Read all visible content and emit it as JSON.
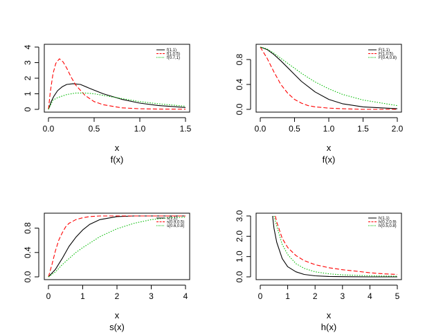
{
  "chart_data": [
    {
      "type": "line",
      "xlabel": "x",
      "caption": "f(x)",
      "xlim": [
        0,
        1.5
      ],
      "ylim": [
        0,
        4
      ],
      "x_ticks": [
        0.0,
        0.5,
        1.0,
        1.5
      ],
      "x_tick_labels": [
        "0.0",
        "0.5",
        "1.0",
        "1.5"
      ],
      "y_ticks": [
        0,
        1,
        2,
        3,
        4
      ],
      "y_tick_labels": [
        "0",
        "1",
        "2",
        "3",
        "4"
      ],
      "legend_position": "top-right",
      "series": [
        {
          "name": "f(1,1)",
          "color": "#000000",
          "dash": "solid",
          "x": [
            0,
            0.03,
            0.06,
            0.1,
            0.15,
            0.2,
            0.27,
            0.35,
            0.45,
            0.6,
            0.8,
            1.0,
            1.2,
            1.5
          ],
          "y": [
            0,
            0.5,
            0.85,
            1.2,
            1.45,
            1.6,
            1.65,
            1.6,
            1.35,
            1.0,
            0.65,
            0.4,
            0.25,
            0.12
          ]
        },
        {
          "name": "f(1,0.5)",
          "color": "#ff0000",
          "dash": "dashed",
          "x": [
            0,
            0.02,
            0.05,
            0.08,
            0.12,
            0.16,
            0.2,
            0.25,
            0.3,
            0.4,
            0.5,
            0.6,
            0.8,
            1.0,
            1.2,
            1.5
          ],
          "y": [
            0,
            1.1,
            2.3,
            2.95,
            3.25,
            3.05,
            2.65,
            2.05,
            1.55,
            0.9,
            0.5,
            0.3,
            0.1,
            0.04,
            0.02,
            0.01
          ]
        },
        {
          "name": "f(0.7,1)",
          "color": "#00bb00",
          "dash": "dotted",
          "x": [
            0,
            0.05,
            0.1,
            0.2,
            0.3,
            0.4,
            0.5,
            0.6,
            0.8,
            1.0,
            1.2,
            1.5
          ],
          "y": [
            0,
            0.6,
            0.75,
            0.95,
            1.05,
            1.05,
            1.0,
            0.9,
            0.7,
            0.5,
            0.36,
            0.2
          ]
        }
      ]
    },
    {
      "type": "line",
      "xlabel": "x",
      "caption": "f(x)",
      "xlim": [
        0,
        2
      ],
      "ylim": [
        0,
        1
      ],
      "x_ticks": [
        0.0,
        0.5,
        1.0,
        1.5,
        2.0
      ],
      "x_tick_labels": [
        "0.0",
        "0.5",
        "1.0",
        "1.5",
        "2.0"
      ],
      "y_ticks": [
        0.0,
        0.4,
        0.8
      ],
      "y_tick_labels": [
        "0.0",
        "0.4",
        "0.8"
      ],
      "legend_position": "top-right",
      "series": [
        {
          "name": "F(1,1)",
          "color": "#000000",
          "dash": "solid",
          "x": [
            0,
            0.1,
            0.2,
            0.3,
            0.4,
            0.5,
            0.6,
            0.8,
            1.0,
            1.2,
            1.5,
            2.0
          ],
          "y": [
            1.0,
            0.96,
            0.88,
            0.78,
            0.67,
            0.56,
            0.45,
            0.28,
            0.16,
            0.09,
            0.04,
            0.01
          ]
        },
        {
          "name": "F(1,0.5)",
          "color": "#ff0000",
          "dash": "dashed",
          "x": [
            0,
            0.1,
            0.2,
            0.3,
            0.4,
            0.5,
            0.6,
            0.7,
            0.8,
            1.0,
            1.2,
            1.5,
            2.0
          ],
          "y": [
            1.0,
            0.82,
            0.6,
            0.4,
            0.26,
            0.16,
            0.1,
            0.06,
            0.04,
            0.02,
            0.01,
            0.0,
            0.0
          ]
        },
        {
          "name": "F(0.4,0.8)",
          "color": "#00bb00",
          "dash": "dotted",
          "x": [
            0,
            0.1,
            0.2,
            0.4,
            0.6,
            0.8,
            1.0,
            1.2,
            1.5,
            2.0
          ],
          "y": [
            1.0,
            0.97,
            0.9,
            0.74,
            0.58,
            0.44,
            0.33,
            0.24,
            0.15,
            0.06
          ]
        }
      ]
    },
    {
      "type": "line",
      "xlabel": "x",
      "caption": "s(x)",
      "xlim": [
        0,
        4
      ],
      "ylim": [
        0,
        1
      ],
      "x_ticks": [
        0,
        1,
        2,
        3,
        4
      ],
      "x_tick_labels": [
        "0",
        "1",
        "2",
        "3",
        "4"
      ],
      "y_ticks": [
        0.0,
        0.4,
        0.8
      ],
      "y_tick_labels": [
        "0.0",
        "0.4",
        "0.8"
      ],
      "legend_position": "top-right",
      "series": [
        {
          "name": "s(1,1)",
          "color": "#000000",
          "dash": "solid",
          "x": [
            0,
            0.2,
            0.4,
            0.6,
            0.8,
            1.0,
            1.2,
            1.5,
            2.0,
            2.5,
            3.0,
            4.0
          ],
          "y": [
            0,
            0.12,
            0.3,
            0.5,
            0.65,
            0.77,
            0.86,
            0.94,
            0.99,
            1.0,
            1.0,
            1.0
          ]
        },
        {
          "name": "s(0.9,0.5)",
          "color": "#ff0000",
          "dash": "dashed",
          "x": [
            0,
            0.1,
            0.2,
            0.3,
            0.4,
            0.5,
            0.6,
            0.8,
            1.0,
            1.2,
            1.5,
            2.0,
            4.0
          ],
          "y": [
            0,
            0.2,
            0.42,
            0.6,
            0.72,
            0.82,
            0.88,
            0.94,
            0.97,
            0.99,
            1.0,
            1.0,
            1.0
          ]
        },
        {
          "name": "s(0.6,0.8)",
          "color": "#00bb00",
          "dash": "dotted",
          "x": [
            0,
            0.2,
            0.4,
            0.6,
            0.8,
            1.0,
            1.5,
            2.0,
            2.5,
            3.0,
            3.5,
            4.0
          ],
          "y": [
            0,
            0.08,
            0.2,
            0.3,
            0.4,
            0.48,
            0.66,
            0.79,
            0.88,
            0.94,
            0.97,
            0.98
          ]
        }
      ]
    },
    {
      "type": "line",
      "xlabel": "x",
      "caption": "h(x)",
      "xlim": [
        0,
        5
      ],
      "ylim": [
        0,
        3
      ],
      "x_ticks": [
        0,
        1,
        2,
        3,
        4,
        5
      ],
      "x_tick_labels": [
        "0",
        "1",
        "2",
        "3",
        "4",
        "5"
      ],
      "y_ticks": [
        0.0,
        1.0,
        2.0,
        3.0
      ],
      "y_tick_labels": [
        "0.0",
        "1.0",
        "2.0",
        "3.0"
      ],
      "legend_position": "top-right",
      "series": [
        {
          "name": "h(1,1)",
          "color": "#000000",
          "dash": "solid",
          "x": [
            0.45,
            0.5,
            0.6,
            0.8,
            1.0,
            1.3,
            1.6,
            2.0,
            2.5,
            3.0,
            4.0,
            5.0
          ],
          "y": [
            3.0,
            2.4,
            1.7,
            0.9,
            0.5,
            0.25,
            0.12,
            0.05,
            0.02,
            0.01,
            0.0,
            0.0
          ]
        },
        {
          "name": "h(0.2,0.9)",
          "color": "#ff0000",
          "dash": "dashed",
          "x": [
            0.55,
            0.6,
            0.8,
            1.0,
            1.3,
            1.6,
            2.0,
            2.5,
            3.0,
            3.5,
            4.0,
            4.5,
            5.0
          ],
          "y": [
            3.0,
            2.7,
            1.9,
            1.45,
            1.05,
            0.8,
            0.6,
            0.45,
            0.35,
            0.28,
            0.2,
            0.15,
            0.12
          ]
        },
        {
          "name": "h(0.5,0.8)",
          "color": "#00bb00",
          "dash": "dotted",
          "x": [
            0.5,
            0.6,
            0.8,
            1.0,
            1.3,
            1.6,
            2.0,
            2.5,
            3.0,
            4.0,
            5.0
          ],
          "y": [
            3.0,
            2.5,
            1.6,
            1.1,
            0.65,
            0.42,
            0.25,
            0.15,
            0.1,
            0.05,
            0.03
          ]
        }
      ]
    }
  ]
}
